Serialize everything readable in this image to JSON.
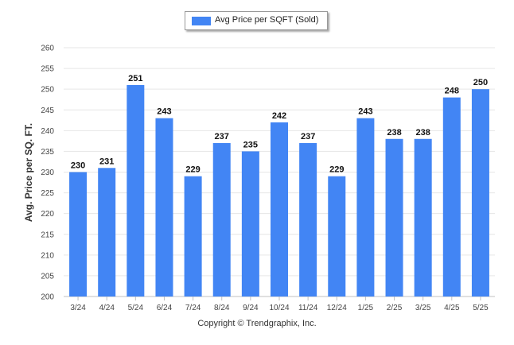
{
  "legend": {
    "label": "Avg Price per SQFT (Sold)"
  },
  "footer": {
    "copyright": "Copyright © Trendgraphix, Inc."
  },
  "colors": {
    "bar": "#4285f4",
    "grid": "#e6e6e6",
    "axis": "#c0c0c0"
  },
  "chart_data": {
    "type": "bar",
    "title": "",
    "xlabel": "",
    "ylabel": "Avg. Price per SQ. FT.",
    "categories": [
      "3/24",
      "4/24",
      "5/24",
      "6/24",
      "7/24",
      "8/24",
      "9/24",
      "10/24",
      "11/24",
      "12/24",
      "1/25",
      "2/25",
      "3/25",
      "4/25",
      "5/25"
    ],
    "series": [
      {
        "name": "Avg Price per SQFT (Sold)",
        "values": [
          230,
          231,
          251,
          243,
          229,
          237,
          235,
          242,
          237,
          229,
          243,
          238,
          238,
          248,
          250
        ]
      }
    ],
    "ylim": [
      200,
      260
    ],
    "yticks": [
      200,
      205,
      210,
      215,
      220,
      225,
      230,
      235,
      240,
      245,
      250,
      255,
      260
    ],
    "grid": true,
    "legend_position": "top-center",
    "data_labels": true
  }
}
